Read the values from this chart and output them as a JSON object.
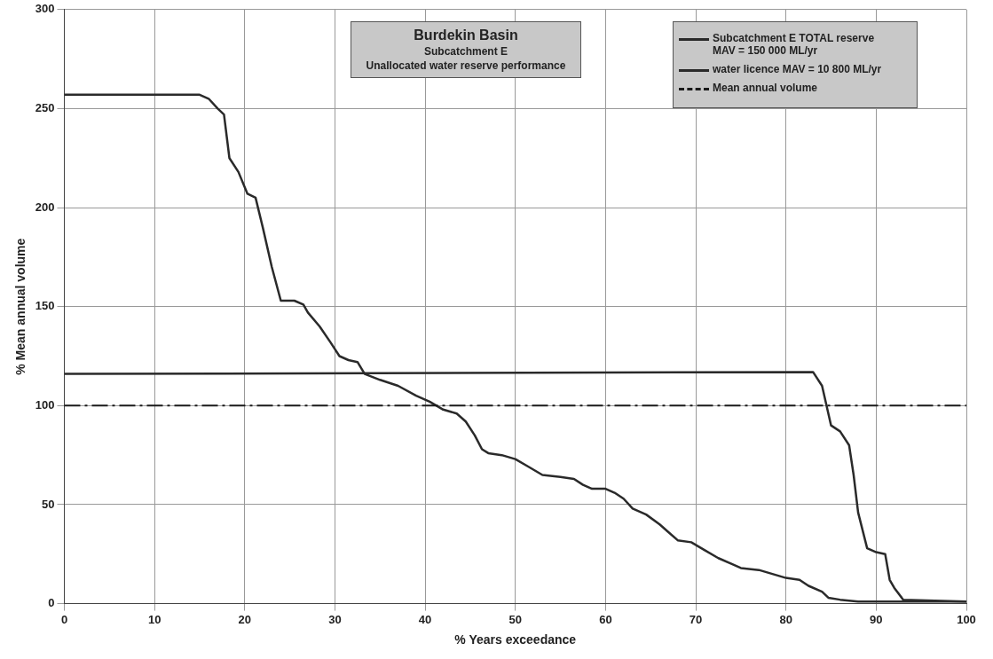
{
  "chart_data": {
    "type": "line",
    "title": "Burdekin Basin",
    "subtitle": "Subcatchment E",
    "annotations": [
      "Unallocated water reserve performance"
    ],
    "xlabel": "% Years exceedance",
    "ylabel": "% Mean annual volume",
    "xlim": [
      0,
      100
    ],
    "xticks": [
      0,
      10,
      20,
      30,
      40,
      50,
      60,
      70,
      80,
      90,
      100
    ],
    "ylim": [
      0,
      300
    ],
    "yticks": [
      0,
      50,
      100,
      150,
      200,
      250,
      300
    ],
    "grid": true,
    "legend": "top right",
    "marker": "none",
    "line_style": "solid",
    "ref_lines": [
      {
        "axis": "y",
        "value": 100,
        "label": "Mean annual volume",
        "color": "#1a1a1a",
        "line_style": "dashed"
      }
    ],
    "series": [
      {
        "name": "Subcatchment E TOTAL reserve MAV = 150 000 ML/yr",
        "color": "#2a2a2a",
        "x": [
          0,
          15,
          16,
          17,
          17.7,
          18.3,
          19.3,
          20.3,
          21.2,
          22,
          23,
          24,
          25.5,
          26.5,
          27,
          28.3,
          29.5,
          30.5,
          31.5,
          32.5,
          33.3,
          35,
          37,
          39,
          40.5,
          42,
          43.5,
          44.5,
          45.5,
          46.3,
          47,
          48.5,
          50,
          51.5,
          53,
          55,
          56.5,
          57.5,
          58.5,
          60,
          61,
          62,
          63,
          64.5,
          66,
          67,
          68,
          69.5,
          71,
          72.5,
          74,
          75,
          77,
          78.5,
          80,
          81.5,
          82.5,
          84,
          84.7,
          86,
          88,
          100
        ],
        "values": [
          257,
          257,
          255,
          250,
          247,
          225,
          218,
          207,
          205,
          190,
          170,
          153,
          153,
          151,
          147,
          140,
          132,
          125,
          123,
          122,
          116,
          113,
          110,
          105,
          102,
          98,
          96,
          92,
          85,
          78,
          76,
          75,
          73,
          69,
          65,
          64,
          63,
          60,
          58,
          58,
          56,
          53,
          48,
          45,
          40,
          36,
          32,
          31,
          27,
          23,
          20,
          18,
          17,
          15,
          13,
          12,
          9,
          6,
          3,
          2,
          1,
          1
        ]
      },
      {
        "name": "water licence MAV = 10 800 ML/yr",
        "color": "#2a2a2a",
        "x": [
          0,
          83,
          84,
          85,
          86,
          87,
          87.5,
          88,
          89,
          90,
          91,
          91.5,
          92,
          93,
          100
        ],
        "values": [
          116,
          117,
          110,
          90,
          87,
          80,
          65,
          46,
          28,
          26,
          25,
          12,
          8,
          2,
          1
        ]
      }
    ]
  }
}
